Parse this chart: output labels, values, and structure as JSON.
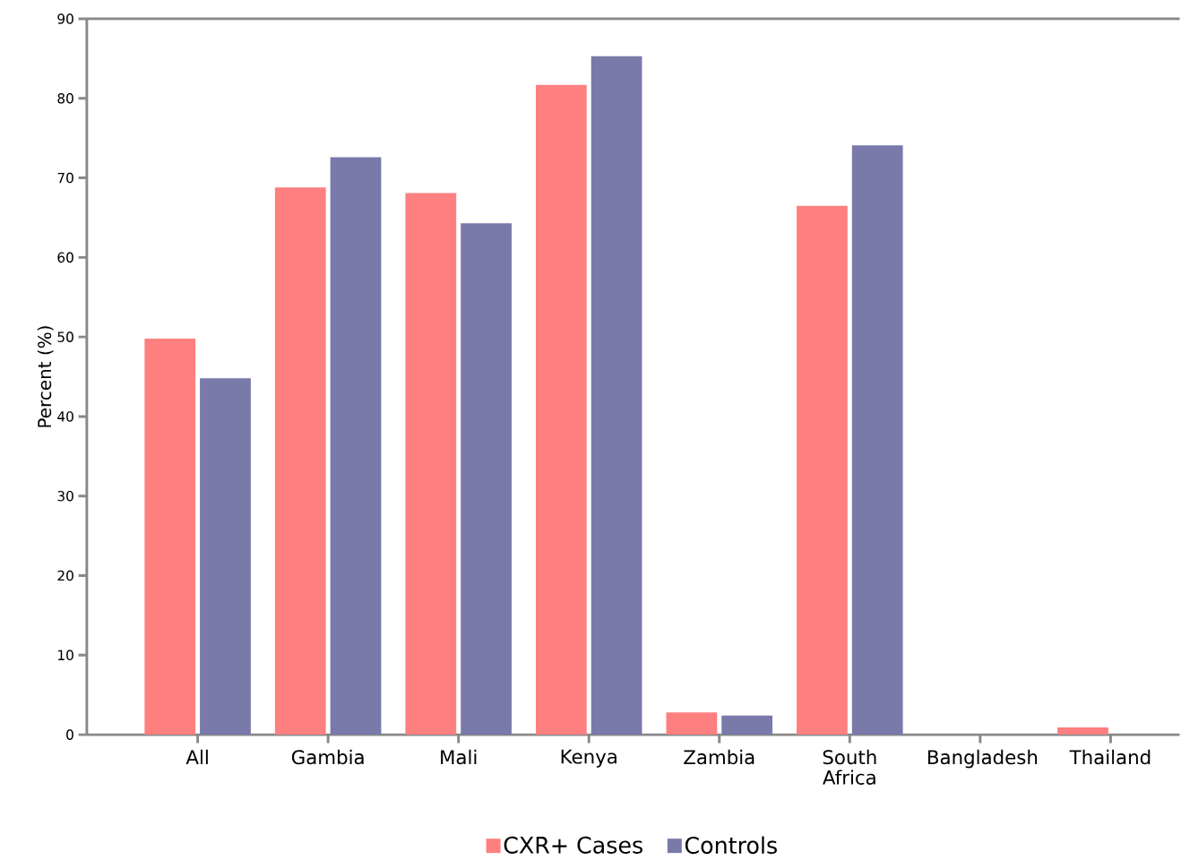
{
  "chart_data": {
    "type": "bar",
    "ylabel": "Percent (%)",
    "categories": [
      "All",
      "Gambia",
      "Mali",
      "Kenya",
      "Zambia",
      "South Africa",
      "Bangladesh",
      "Thailand"
    ],
    "series": [
      {
        "name": "CXR+ Cases",
        "color": "#fe7f7f",
        "values": [
          49.8,
          68.8,
          68.1,
          81.7,
          2.8,
          66.5,
          0,
          0.9
        ]
      },
      {
        "name": "Controls",
        "color": "#7979aa",
        "values": [
          44.8,
          72.6,
          64.3,
          85.3,
          2.4,
          74.1,
          0,
          0
        ]
      }
    ],
    "ylim": [
      0,
      90
    ],
    "yticks": [
      0,
      10,
      20,
      30,
      40,
      50,
      60,
      70,
      80,
      90
    ],
    "legend": "bottom",
    "grid": false
  }
}
